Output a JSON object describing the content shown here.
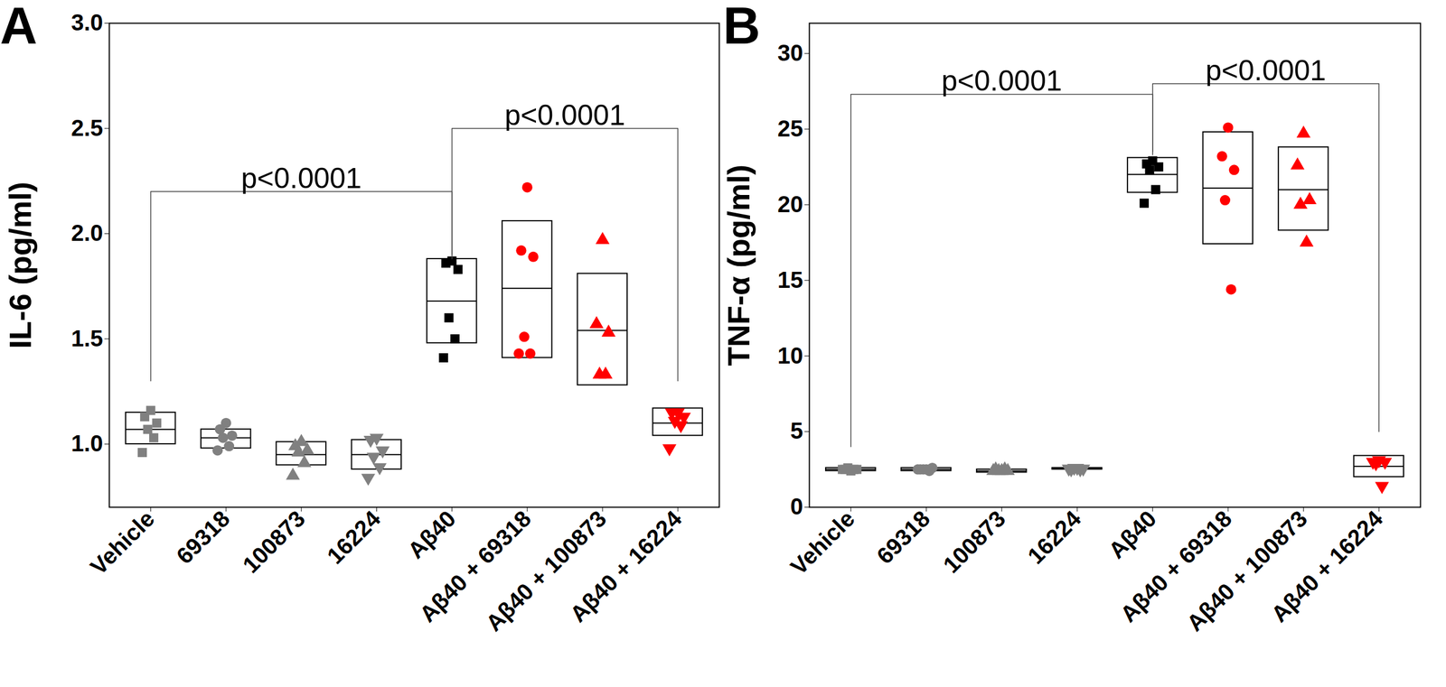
{
  "chart_data": [
    {
      "type": "box_dot",
      "panel_label": "A",
      "y_label": "IL-6 (pg/ml)",
      "categories": [
        "Vehicle",
        "69318",
        "100873",
        "16224",
        "Aβ40",
        "Aβ40 + 69318",
        "Aβ40 + 100873",
        "Aβ40 + 16224"
      ],
      "values": [
        [
          1.16,
          1.13,
          1.1,
          1.07,
          1.03,
          0.96
        ],
        [
          1.1,
          1.07,
          1.04,
          1.03,
          0.99,
          0.97
        ],
        [
          1.01,
          0.99,
          0.97,
          0.96,
          0.91,
          0.85
        ],
        [
          1.03,
          1.02,
          0.97,
          0.94,
          0.89,
          0.84
        ],
        [
          1.87,
          1.86,
          1.83,
          1.6,
          1.5,
          1.41
        ],
        [
          2.22,
          1.92,
          1.89,
          1.51,
          1.43,
          1.43
        ],
        [
          1.97,
          1.57,
          1.53,
          1.33,
          1.33
        ],
        [
          1.15,
          1.15,
          1.13,
          1.11,
          1.09,
          0.98
        ]
      ],
      "box_mean": [
        1.07,
        1.03,
        0.95,
        0.95,
        1.68,
        1.74,
        1.54,
        1.1
      ],
      "box_low": [
        1.0,
        0.98,
        0.9,
        0.88,
        1.48,
        1.41,
        1.28,
        1.04
      ],
      "box_high": [
        1.15,
        1.07,
        1.01,
        1.02,
        1.88,
        2.06,
        1.81,
        1.17
      ],
      "colors": [
        "#808080",
        "#808080",
        "#808080",
        "#808080",
        "#000000",
        "#ff0000",
        "#ff0000",
        "#ff0000"
      ],
      "markers": [
        "square",
        "circle",
        "triangle",
        "triangle-down",
        "square",
        "circle",
        "triangle",
        "triangle-down"
      ],
      "ylim": [
        0.7,
        3.0
      ],
      "yticks": [
        {
          "value": 1.0,
          "label": "1.0"
        },
        {
          "value": 1.5,
          "label": "1.5"
        },
        {
          "value": 2.0,
          "label": "2.0"
        },
        {
          "value": 2.5,
          "label": "2.5"
        },
        {
          "value": 3.0,
          "label": "3.0"
        }
      ],
      "annotations": [
        {
          "text": "p<0.0001",
          "from": "Vehicle",
          "to": "Aβ40",
          "y": 2.2,
          "from_y": 1.3,
          "to_y": 1.88
        },
        {
          "text": "p<0.0001",
          "from": "Aβ40",
          "to": "Aβ40 + 16224",
          "y": 2.5,
          "from_y": 1.9,
          "to_y": 1.3
        }
      ]
    },
    {
      "type": "box_dot",
      "panel_label": "B",
      "y_label": "TNF-α (pg/ml)",
      "categories": [
        "Vehicle",
        "69318",
        "100873",
        "16224",
        "Aβ40",
        "Aβ40 + 69318",
        "Aβ40 + 100873",
        "Aβ40 + 16224"
      ],
      "values": [
        [
          2.4,
          2.5,
          2.5,
          2.6,
          2.5,
          2.5
        ],
        [
          2.5,
          2.5,
          2.6,
          2.5,
          2.4,
          2.5
        ],
        [
          2.4,
          2.5,
          2.4,
          2.4,
          2.5,
          2.4
        ],
        [
          2.6,
          2.5,
          2.55,
          2.6,
          2.5,
          2.55
        ],
        [
          22.9,
          22.7,
          22.5,
          22.3,
          21.0,
          20.1
        ],
        [
          25.1,
          23.2,
          22.3,
          20.3,
          14.4
        ],
        [
          24.7,
          22.6,
          20.3,
          20.0,
          17.5
        ],
        [
          3.1,
          3.0,
          3.0,
          2.9,
          1.4
        ]
      ],
      "box_mean": [
        2.5,
        2.5,
        2.4,
        2.55,
        22.0,
        21.1,
        21.0,
        2.7
      ],
      "box_low": [
        2.4,
        2.4,
        2.3,
        2.5,
        20.8,
        17.4,
        18.3,
        2.0
      ],
      "box_high": [
        2.6,
        2.6,
        2.5,
        2.6,
        23.1,
        24.8,
        23.8,
        3.4
      ],
      "colors": [
        "#808080",
        "#808080",
        "#808080",
        "#808080",
        "#000000",
        "#ff0000",
        "#ff0000",
        "#ff0000"
      ],
      "markers": [
        "square",
        "circle",
        "triangle",
        "triangle-down",
        "square",
        "circle",
        "triangle",
        "triangle-down"
      ],
      "ylim": [
        0,
        32
      ],
      "yticks": [
        0,
        5,
        10,
        15,
        20,
        25,
        30
      ],
      "annotations": [
        {
          "text": "p<0.0001",
          "from": "Vehicle",
          "to": "Aβ40",
          "y": 27.3,
          "from_y": 4.0,
          "to_y": 23.3
        },
        {
          "text": "p<0.0001",
          "from": "Aβ40",
          "to": "Aβ40 + 16224",
          "y": 28.0,
          "from_y": 23.5,
          "to_y": 5.0
        }
      ]
    }
  ]
}
